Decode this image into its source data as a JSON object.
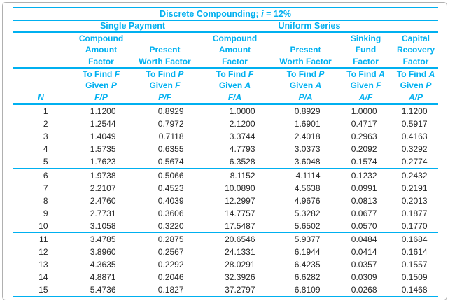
{
  "colors": {
    "accent": "#00b0f0",
    "text": "#262626",
    "frame_border": "#b0b0b0",
    "background": "#ffffff"
  },
  "table": {
    "title_segments": [
      {
        "text": "Discrete Compounding; ",
        "italic": false
      },
      {
        "text": "i",
        "italic": true
      },
      {
        "text": " = 12%",
        "italic": false
      }
    ],
    "group_headers": [
      {
        "label": "Single Payment"
      },
      {
        "label": "Uniform Series"
      }
    ],
    "columns": [
      {
        "id": "n",
        "header_lines": [
          "",
          "",
          ""
        ],
        "tofind": [],
        "code": "N"
      },
      {
        "id": "fp",
        "header_lines": [
          "Compound",
          "Amount",
          "Factor"
        ],
        "tofind": [
          "To Find F",
          "Given P"
        ],
        "code": "F/P"
      },
      {
        "id": "pf",
        "header_lines": [
          "",
          "Present",
          "Worth Factor"
        ],
        "tofind": [
          "To Find P",
          "Given F"
        ],
        "code": "P/F"
      },
      {
        "id": "fa",
        "header_lines": [
          "Compound",
          "Amount",
          "Factor"
        ],
        "tofind": [
          "To Find F",
          "Given A"
        ],
        "code": "F/A"
      },
      {
        "id": "pa",
        "header_lines": [
          "",
          "Present",
          "Worth Factor"
        ],
        "tofind": [
          "To Find P",
          "Given A"
        ],
        "code": "P/A"
      },
      {
        "id": "af",
        "header_lines": [
          "Sinking",
          "Fund",
          "Factor"
        ],
        "tofind": [
          "To Find A",
          "Given F"
        ],
        "code": "A/F"
      },
      {
        "id": "ap",
        "header_lines": [
          "Capital",
          "Recovery",
          "Factor"
        ],
        "tofind": [
          "To Find A",
          "Given P"
        ],
        "code": "A/P"
      }
    ],
    "group_breaks": [
      4,
      9
    ],
    "rows": [
      [
        "1",
        "1.1200",
        "0.8929",
        "1.0000",
        "0.8929",
        "1.0000",
        "1.1200"
      ],
      [
        "2",
        "1.2544",
        "0.7972",
        "2.1200",
        "1.6901",
        "0.4717",
        "0.5917"
      ],
      [
        "3",
        "1.4049",
        "0.7118",
        "3.3744",
        "2.4018",
        "0.2963",
        "0.4163"
      ],
      [
        "4",
        "1.5735",
        "0.6355",
        "4.7793",
        "3.0373",
        "0.2092",
        "0.3292"
      ],
      [
        "5",
        "1.7623",
        "0.5674",
        "6.3528",
        "3.6048",
        "0.1574",
        "0.2774"
      ],
      [
        "6",
        "1.9738",
        "0.5066",
        "8.1152",
        "4.1114",
        "0.1232",
        "0.2432"
      ],
      [
        "7",
        "2.2107",
        "0.4523",
        "10.0890",
        "4.5638",
        "0.0991",
        "0.2191"
      ],
      [
        "8",
        "2.4760",
        "0.4039",
        "12.2997",
        "4.9676",
        "0.0813",
        "0.2013"
      ],
      [
        "9",
        "2.7731",
        "0.3606",
        "14.7757",
        "5.3282",
        "0.0677",
        "0.1877"
      ],
      [
        "10",
        "3.1058",
        "0.3220",
        "17.5487",
        "5.6502",
        "0.0570",
        "0.1770"
      ],
      [
        "11",
        "3.4785",
        "0.2875",
        "20.6546",
        "5.9377",
        "0.0484",
        "0.1684"
      ],
      [
        "12",
        "3.8960",
        "0.2567",
        "24.1331",
        "6.1944",
        "0.0414",
        "0.1614"
      ],
      [
        "13",
        "4.3635",
        "0.2292",
        "28.0291",
        "6.4235",
        "0.0357",
        "0.1557"
      ],
      [
        "14",
        "4.8871",
        "0.2046",
        "32.3926",
        "6.6282",
        "0.0309",
        "0.1509"
      ],
      [
        "15",
        "5.4736",
        "0.1827",
        "37.2797",
        "6.8109",
        "0.0268",
        "0.1468"
      ]
    ]
  }
}
